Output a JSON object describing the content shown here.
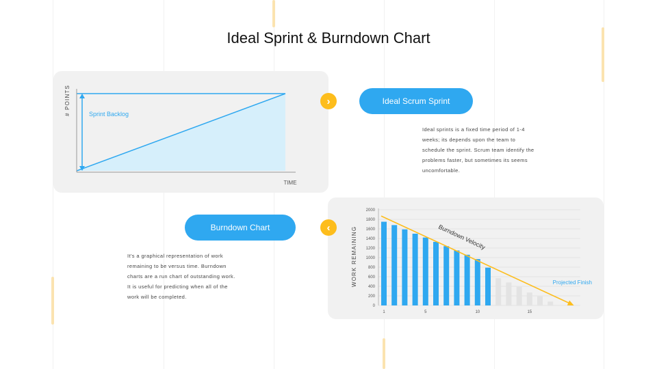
{
  "title": "Ideal Sprint & Burndown Chart",
  "ideal_sprint": {
    "y_axis_label": "# POINTS",
    "x_axis_label": "TIME",
    "backlog_label": "Sprint Backlog",
    "pill_label": "Ideal Scrum Sprint",
    "arrow_icon": "chevron-right-icon",
    "description_lines": [
      "Ideal sprints is a fixed time period of 1-4",
      "weeks; its depends upon the team to",
      "schedule the sprint. Scrum team identify the",
      "problems faster, but sometimes its seems",
      "uncomfortable."
    ]
  },
  "burndown": {
    "pill_label": "Burndown Chart",
    "arrow_icon": "chevron-left-icon",
    "description_lines": [
      "It's a graphical representation of work",
      "remaining to be versus time. Burndown",
      "charts are a run chart of outstanding work.",
      "It is useful for predicting when all of the",
      "work will be completed."
    ]
  },
  "colors": {
    "accent_blue": "#2fa8f0",
    "accent_yellow": "#fdbd1c",
    "light_blue_fill": "#d6effb",
    "projected_grey": "#e3e3e3",
    "projected_text": "#2fa8f0"
  },
  "chart_data": [
    {
      "type": "area",
      "title": "",
      "xlabel": "TIME",
      "ylabel": "# POINTS",
      "annotation": "Sprint Backlog",
      "series": [
        {
          "values": [
            0,
            1
          ]
        },
        {
          "values": [
            1,
            1
          ]
        }
      ],
      "grid": false
    },
    {
      "type": "bar",
      "title": "",
      "ylabel": "WORK REMAINING",
      "ylim": [
        0,
        2000
      ],
      "yticks": [
        0,
        200,
        400,
        600,
        800,
        1000,
        1200,
        1400,
        1600,
        1800,
        2000
      ],
      "xticks": [
        1,
        5,
        10,
        15
      ],
      "actual_values": [
        1750,
        1680,
        1590,
        1500,
        1420,
        1330,
        1240,
        1150,
        1060,
        970,
        790
      ],
      "projected_values": [
        570,
        480,
        390,
        270,
        190,
        80
      ],
      "line_label": "Burndown Velocity",
      "line": {
        "x": [
          1,
          19
        ],
        "y": [
          1870,
          0
        ]
      },
      "projected_label": "Projected Finish",
      "grid": true
    }
  ]
}
